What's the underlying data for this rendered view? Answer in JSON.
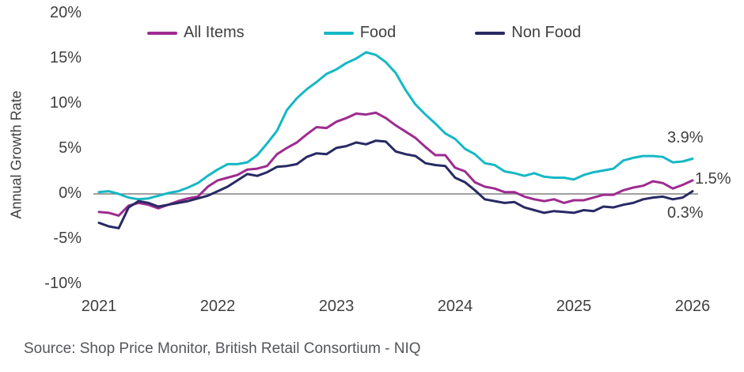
{
  "chart_data": {
    "type": "line",
    "title": "",
    "ylabel": "Annual Growth Rate",
    "ylim": [
      -10,
      20
    ],
    "grid": false,
    "legend_position": "top",
    "axis_color": "#808080",
    "y_ticks": [
      {
        "value": 20,
        "label": "20%"
      },
      {
        "value": 15,
        "label": "15%"
      },
      {
        "value": 10,
        "label": "10%"
      },
      {
        "value": 5,
        "label": "5%"
      },
      {
        "value": 0,
        "label": "0%"
      },
      {
        "value": -5,
        "label": "-5%"
      },
      {
        "value": -10,
        "label": "-10%"
      }
    ],
    "x_ticks": [
      {
        "index": 0,
        "label": "2021"
      },
      {
        "index": 12,
        "label": "2022"
      },
      {
        "index": 24,
        "label": "2023"
      },
      {
        "index": 36,
        "label": "2024"
      },
      {
        "index": 48,
        "label": "2025"
      },
      {
        "index": 60,
        "label": "2026"
      }
    ],
    "x_unit": "monthly, Jan 2021 to Jan 2026",
    "series": [
      {
        "name": "All Items",
        "color": "#9e2b8f",
        "values": [
          -2.0,
          -2.1,
          -2.4,
          -1.3,
          -1.0,
          -1.2,
          -1.6,
          -1.2,
          -0.8,
          -0.5,
          -0.3,
          0.8,
          1.5,
          1.8,
          2.1,
          2.7,
          2.8,
          3.1,
          4.4,
          5.1,
          5.7,
          6.6,
          7.4,
          7.3,
          8.0,
          8.4,
          8.9,
          8.8,
          9.0,
          8.4,
          7.6,
          6.9,
          6.2,
          5.2,
          4.3,
          4.3,
          2.9,
          2.5,
          1.3,
          0.8,
          0.6,
          0.2,
          0.2,
          -0.3,
          -0.6,
          -0.8,
          -0.6,
          -1.0,
          -0.7,
          -0.7,
          -0.4,
          -0.1,
          -0.1,
          0.4,
          0.7,
          0.9,
          1.4,
          1.2,
          0.6,
          1.0,
          1.5
        ]
      },
      {
        "name": "Food",
        "color": "#15b8c5",
        "values": [
          0.2,
          0.3,
          0.0,
          -0.4,
          -0.6,
          -0.5,
          -0.2,
          0.1,
          0.3,
          0.7,
          1.2,
          2.0,
          2.7,
          3.3,
          3.3,
          3.5,
          4.3,
          5.6,
          7.0,
          9.3,
          10.6,
          11.6,
          12.4,
          13.3,
          13.8,
          14.5,
          15.0,
          15.7,
          15.4,
          14.6,
          13.4,
          11.5,
          9.9,
          8.8,
          7.8,
          6.7,
          6.1,
          5.0,
          4.4,
          3.4,
          3.2,
          2.5,
          2.3,
          2.0,
          2.3,
          1.9,
          1.8,
          1.8,
          1.6,
          2.1,
          2.4,
          2.6,
          2.8,
          3.7,
          4.0,
          4.2,
          4.2,
          4.1,
          3.5,
          3.6,
          3.9
        ]
      },
      {
        "name": "Non Food",
        "color": "#272a63",
        "values": [
          -3.2,
          -3.6,
          -3.8,
          -1.5,
          -0.8,
          -1.0,
          -1.4,
          -1.2,
          -1.0,
          -0.8,
          -0.5,
          -0.2,
          0.3,
          0.8,
          1.5,
          2.2,
          2.0,
          2.4,
          3.0,
          3.1,
          3.3,
          4.1,
          4.5,
          4.4,
          5.1,
          5.3,
          5.7,
          5.5,
          5.9,
          5.8,
          4.7,
          4.4,
          4.2,
          3.4,
          3.2,
          3.1,
          1.8,
          1.3,
          0.4,
          -0.6,
          -0.8,
          -1.0,
          -0.9,
          -1.5,
          -1.8,
          -2.1,
          -1.9,
          -2.0,
          -2.1,
          -1.8,
          -1.9,
          -1.4,
          -1.5,
          -1.2,
          -1.0,
          -0.6,
          -0.4,
          -0.3,
          -0.6,
          -0.4,
          0.3
        ]
      }
    ],
    "end_labels": [
      {
        "text": "3.9%",
        "series": "Food"
      },
      {
        "text": "1.5%",
        "series": "All Items"
      },
      {
        "text": "0.3%",
        "series": "Non Food"
      }
    ]
  },
  "source": "Source: Shop Price Monitor, British Retail Consortium - NIQ"
}
